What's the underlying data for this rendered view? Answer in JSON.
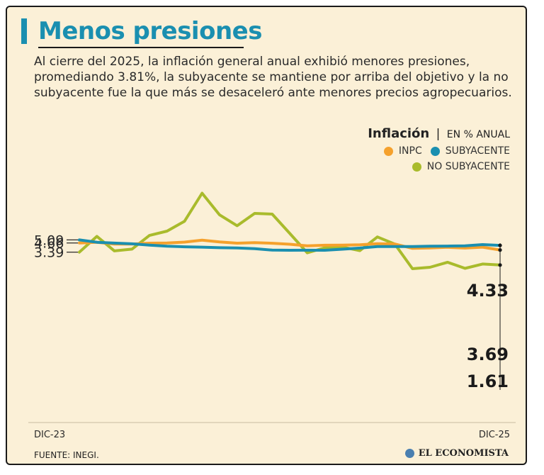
{
  "header": {
    "title": "Menos presiones",
    "subtitle": "Al cierre del 2025, la inflación general anual exhibió menores presiones, promediando 3.81%, la subyacente se mantiene por arriba del objetivo y la no subyacente fue la que más se desaceleró ante menores precios agropecuarios."
  },
  "legend": {
    "title": "Inflación",
    "separator": "|",
    "unit": "EN % ANUAL",
    "items": [
      {
        "label": "INPC",
        "color": "#f5a12c"
      },
      {
        "label": "SUBYACENTE",
        "color": "#1a8fb0"
      },
      {
        "label": "NO SUBYACENTE",
        "color": "#a9bb2c"
      }
    ]
  },
  "chart_data": {
    "type": "line",
    "title": "Inflación",
    "ylabel": "EN % ANUAL",
    "xlabel": "",
    "x_start_label": "DIC-23",
    "x_end_label": "DIC-25",
    "y_ticks": [
      "5.09",
      "4.66",
      "3.39"
    ],
    "y_tick_values": [
      5.09,
      4.66,
      3.39
    ],
    "end_labels": [
      "4.33",
      "3.69",
      "1.61"
    ],
    "series": [
      {
        "name": "INPC",
        "color": "#f5a12c",
        "values": [
          4.66,
          4.75,
          4.52,
          4.52,
          4.63,
          4.65,
          4.78,
          5.05,
          4.8,
          4.63,
          4.7,
          4.62,
          4.49,
          4.26,
          4.35,
          4.36,
          4.41,
          4.57,
          4.52,
          3.92,
          3.97,
          4.07,
          3.96,
          4.09,
          3.69
        ]
      },
      {
        "name": "SUBYACENTE",
        "color": "#1a8fb0",
        "values": [
          5.09,
          4.76,
          4.64,
          4.55,
          4.37,
          4.22,
          4.13,
          4.09,
          4.01,
          3.98,
          3.87,
          3.67,
          3.65,
          3.66,
          3.65,
          3.8,
          3.96,
          4.17,
          4.16,
          4.16,
          4.21,
          4.23,
          4.26,
          4.44,
          4.33
        ]
      },
      {
        "name": "NO SUBYACENTE",
        "color": "#a9bb2c",
        "values": [
          3.39,
          5.58,
          3.57,
          3.81,
          5.7,
          6.3,
          7.66,
          11.55,
          8.55,
          7.05,
          8.75,
          8.65,
          6.0,
          3.3,
          4.0,
          4.1,
          3.6,
          5.5,
          4.5,
          1.1,
          1.3,
          2.0,
          1.15,
          1.75,
          1.61
        ]
      }
    ]
  },
  "footer": {
    "source": "FUENTE: INEGI.",
    "brand": "EL ECONOMISTA"
  }
}
